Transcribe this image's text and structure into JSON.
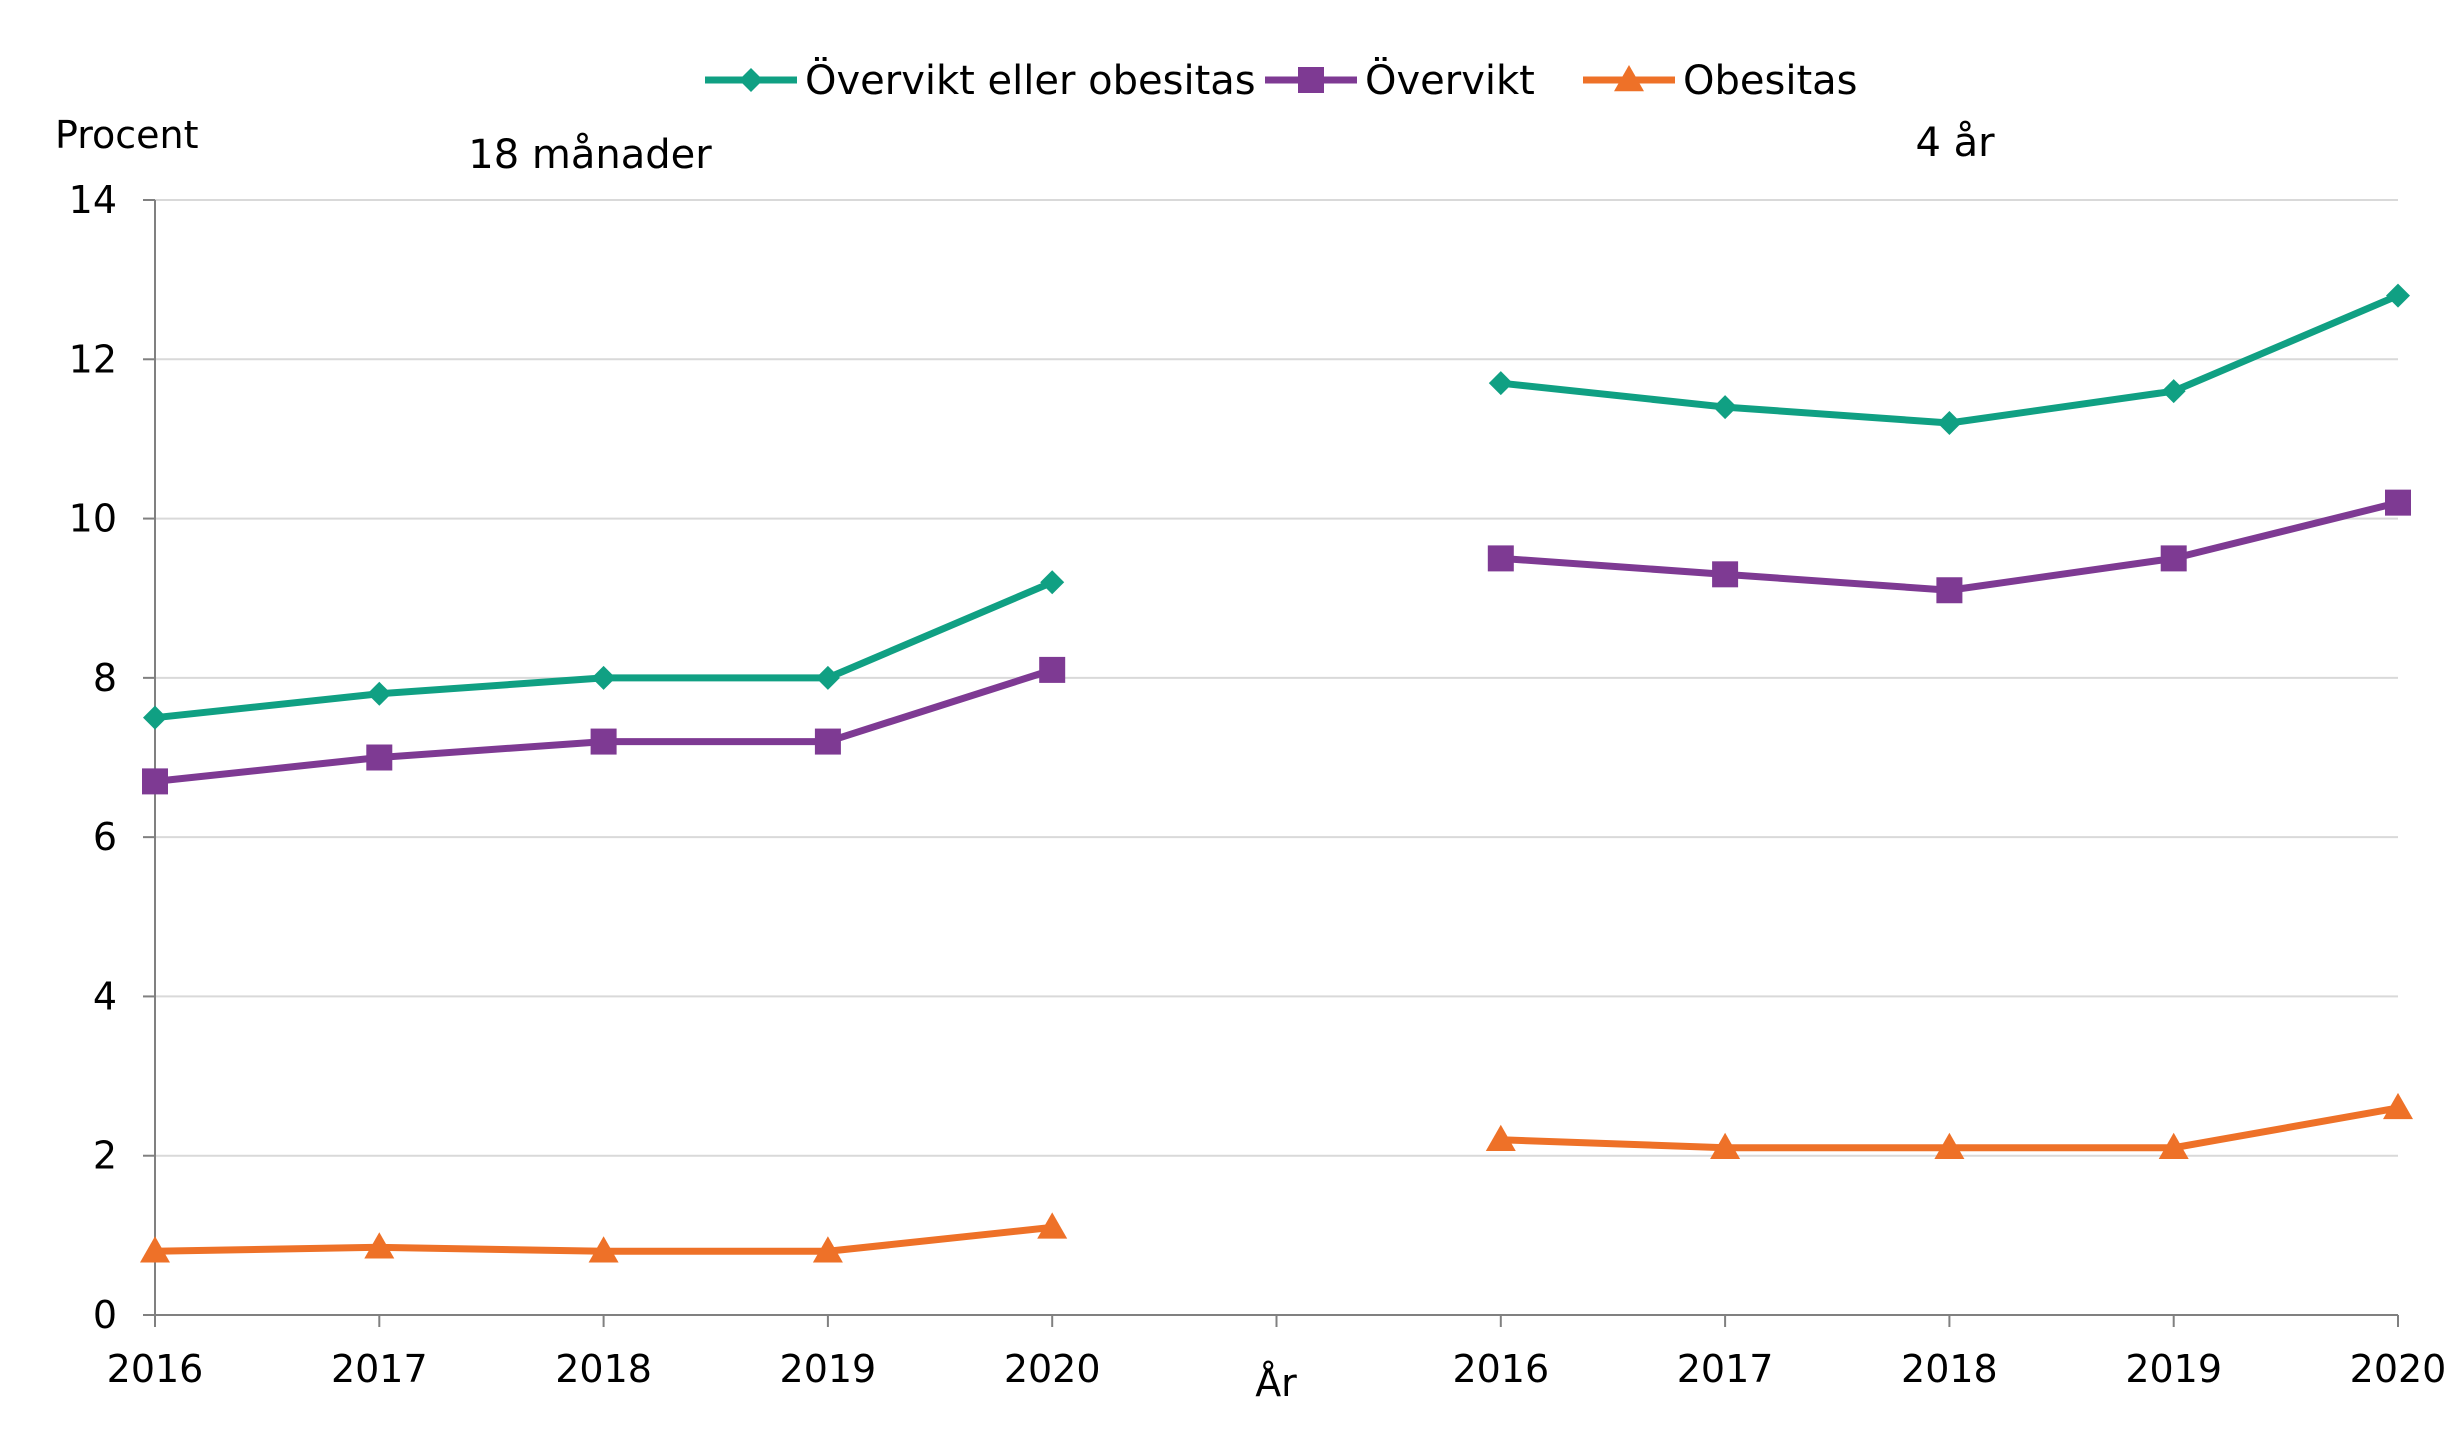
{
  "chart_data": {
    "type": "line",
    "title": "",
    "ylabel": "Procent",
    "xlabel": "År",
    "ylim": [
      0,
      14
    ],
    "yticks": [
      "0",
      "2",
      "4",
      "6",
      "8",
      "10",
      "12",
      "14"
    ],
    "grid": true,
    "legend": "top",
    "panels": [
      {
        "label": "18 månader",
        "categories": [
          "2016",
          "2017",
          "2018",
          "2019",
          "2020"
        ],
        "series": [
          {
            "name": "Övervikt eller obesitas",
            "values": [
              7.5,
              7.8,
              8.0,
              8.0,
              9.2
            ]
          },
          {
            "name": "Övervikt",
            "values": [
              6.7,
              7.0,
              7.2,
              7.2,
              8.1
            ]
          },
          {
            "name": "Obesitas",
            "values": [
              0.8,
              0.85,
              0.8,
              0.8,
              1.1
            ]
          }
        ]
      },
      {
        "label": "4 år",
        "categories": [
          "2016",
          "2017",
          "2018",
          "2019",
          "2020"
        ],
        "series": [
          {
            "name": "Övervikt eller obesitas",
            "values": [
              11.7,
              11.4,
              11.2,
              11.6,
              12.8
            ]
          },
          {
            "name": "Övervikt",
            "values": [
              9.5,
              9.3,
              9.1,
              9.5,
              10.2
            ]
          },
          {
            "name": "Obesitas",
            "values": [
              2.2,
              2.1,
              2.1,
              2.1,
              2.6
            ]
          }
        ]
      }
    ],
    "legend_entries": [
      {
        "name": "Övervikt eller obesitas",
        "marker": "diamond",
        "color": "#10A083"
      },
      {
        "name": "Övervikt",
        "marker": "square",
        "color": "#7E3A93"
      },
      {
        "name": "Obesitas",
        "marker": "triangle",
        "color": "#EE7128"
      }
    ]
  }
}
